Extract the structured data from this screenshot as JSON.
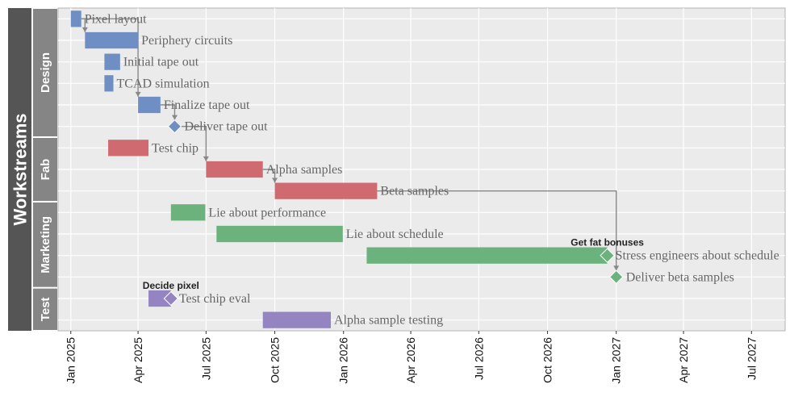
{
  "chart_data": {
    "type": "gantt",
    "strip_title": "Workstreams",
    "groups": [
      {
        "name": "Design",
        "rows": [
          0,
          5
        ]
      },
      {
        "name": "Fab",
        "rows": [
          6,
          8
        ]
      },
      {
        "name": "Marketing",
        "rows": [
          9,
          12
        ]
      },
      {
        "name": "Test",
        "rows": [
          13,
          14
        ]
      }
    ],
    "x_axis": {
      "type": "date",
      "range": [
        "2024-12-15",
        "2027-08-15"
      ],
      "ticks": [
        {
          "date": "2025-01-01",
          "label": "Jan 2025"
        },
        {
          "date": "2025-04-01",
          "label": "Apr 2025"
        },
        {
          "date": "2025-07-01",
          "label": "Jul 2025"
        },
        {
          "date": "2025-10-01",
          "label": "Oct 2025"
        },
        {
          "date": "2026-01-01",
          "label": "Jan 2026"
        },
        {
          "date": "2026-04-01",
          "label": "Apr 2026"
        },
        {
          "date": "2026-07-01",
          "label": "Jul 2026"
        },
        {
          "date": "2026-10-01",
          "label": "Oct 2026"
        },
        {
          "date": "2027-01-01",
          "label": "Jan 2027"
        },
        {
          "date": "2027-04-01",
          "label": "Apr 2027"
        },
        {
          "date": "2027-07-01",
          "label": "Jul 2027"
        }
      ]
    },
    "colors": {
      "Design": "#6f8fc4",
      "Fab": "#cf6b70",
      "Marketing": "#6bb27c",
      "Test": "#9484c2",
      "panel": "#ebebeb",
      "grid": "#ffffff",
      "dependency": "#888888"
    },
    "tasks": [
      {
        "id": "t0",
        "row": 0,
        "group": "Design",
        "label": "Pixel layout",
        "start": "2025-01-01",
        "end": "2025-01-15"
      },
      {
        "id": "t1",
        "row": 1,
        "group": "Design",
        "label": "Periphery circuits",
        "start": "2025-01-20",
        "end": "2025-04-01"
      },
      {
        "id": "t2",
        "row": 2,
        "group": "Design",
        "label": "Initial tape out",
        "start": "2025-02-15",
        "end": "2025-03-08"
      },
      {
        "id": "t3",
        "row": 3,
        "group": "Design",
        "label": "TCAD simulation",
        "start": "2025-02-15",
        "end": "2025-02-27"
      },
      {
        "id": "t4",
        "row": 4,
        "group": "Design",
        "label": "Finalize tape out",
        "start": "2025-04-01",
        "end": "2025-05-01"
      },
      {
        "id": "t5",
        "row": 5,
        "group": "Design",
        "label": "Deliver tape out",
        "date": "2025-05-20",
        "milestone": true
      },
      {
        "id": "t6",
        "row": 6,
        "group": "Fab",
        "label": "Test chip",
        "start": "2025-02-20",
        "end": "2025-04-15"
      },
      {
        "id": "t7",
        "row": 7,
        "group": "Fab",
        "label": "Alpha samples",
        "start": "2025-07-01",
        "end": "2025-09-15"
      },
      {
        "id": "t8",
        "row": 8,
        "group": "Fab",
        "label": "Beta samples",
        "start": "2025-10-01",
        "end": "2026-02-15"
      },
      {
        "id": "t9",
        "row": 9,
        "group": "Marketing",
        "label": "Lie about performance",
        "start": "2025-05-15",
        "end": "2025-06-30"
      },
      {
        "id": "t10",
        "row": 10,
        "group": "Marketing",
        "label": "Lie about schedule",
        "start": "2025-07-15",
        "end": "2025-12-31"
      },
      {
        "id": "t11",
        "row": 11,
        "group": "Marketing",
        "label": "Stress engineers about schedule",
        "start": "2026-02-01",
        "end": "2026-12-20",
        "milestone_end": true,
        "note": "Get fat bonuses"
      },
      {
        "id": "t12",
        "row": 12,
        "group": "Marketing",
        "label": "Deliver beta samples",
        "date": "2027-01-01",
        "milestone": true
      },
      {
        "id": "t13",
        "row": 13,
        "group": "Test",
        "label": "Test chip eval",
        "start": "2025-04-15",
        "end": "2025-05-15",
        "milestone_end": true,
        "note": "Decide pixel"
      },
      {
        "id": "t14",
        "row": 14,
        "group": "Test",
        "label": "Alpha sample testing",
        "start": "2025-09-15",
        "end": "2025-12-15"
      }
    ],
    "dependencies": [
      {
        "from": "t0",
        "to": "t1"
      },
      {
        "from": "t0",
        "to": "t4"
      },
      {
        "from": "t4",
        "to": "t5"
      },
      {
        "from": "t5",
        "to": "t7"
      },
      {
        "from": "t7",
        "to": "t8"
      },
      {
        "from": "t8",
        "to": "t12"
      }
    ]
  }
}
